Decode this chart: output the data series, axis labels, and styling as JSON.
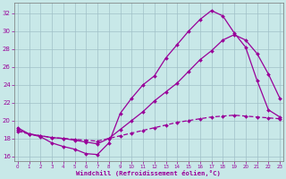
{
  "xlabel": "Windchill (Refroidissement éolien,°C)",
  "background_color": "#c8e8e8",
  "line_color": "#990099",
  "grid_color": "#a0c0c8",
  "xlim": [
    -0.3,
    23.3
  ],
  "ylim": [
    15.5,
    33.2
  ],
  "xticks": [
    0,
    1,
    2,
    3,
    4,
    5,
    6,
    7,
    8,
    9,
    10,
    11,
    12,
    13,
    14,
    15,
    16,
    17,
    18,
    19,
    20,
    21,
    22,
    23
  ],
  "yticks": [
    16,
    18,
    20,
    22,
    24,
    26,
    28,
    30,
    32
  ],
  "s1_x": [
    0,
    1,
    2,
    3,
    4,
    5,
    6,
    7,
    8,
    9,
    10,
    11,
    12,
    13,
    14,
    15,
    16,
    17,
    18,
    19,
    20,
    21,
    22,
    23
  ],
  "s1_y": [
    19.2,
    18.5,
    18.2,
    17.5,
    17.1,
    16.8,
    16.3,
    16.2,
    17.5,
    20.8,
    22.5,
    24.0,
    25.0,
    27.0,
    28.5,
    30.0,
    31.3,
    32.3,
    31.7,
    29.8,
    28.2,
    24.5,
    21.2,
    20.4
  ],
  "s2_x": [
    0,
    1,
    2,
    3,
    4,
    5,
    6,
    7,
    8,
    9,
    10,
    11,
    12,
    13,
    14,
    15,
    16,
    17,
    18,
    19,
    20,
    21,
    22,
    23
  ],
  "s2_y": [
    19.0,
    18.5,
    18.3,
    18.1,
    18.0,
    17.8,
    17.6,
    17.4,
    18.0,
    19.0,
    20.0,
    21.0,
    22.2,
    23.2,
    24.2,
    25.5,
    26.8,
    27.8,
    29.0,
    29.6,
    29.0,
    27.5,
    25.2,
    22.5
  ],
  "s3_x": [
    0,
    1,
    2,
    3,
    4,
    5,
    6,
    7,
    8,
    9,
    10,
    11,
    12,
    13,
    14,
    15,
    16,
    17,
    18,
    19,
    20,
    21,
    22,
    23
  ],
  "s3_y": [
    18.8,
    18.5,
    18.3,
    18.1,
    18.0,
    17.9,
    17.8,
    17.7,
    18.0,
    18.3,
    18.6,
    18.9,
    19.2,
    19.5,
    19.8,
    20.0,
    20.2,
    20.4,
    20.5,
    20.6,
    20.5,
    20.4,
    20.3,
    20.2
  ]
}
